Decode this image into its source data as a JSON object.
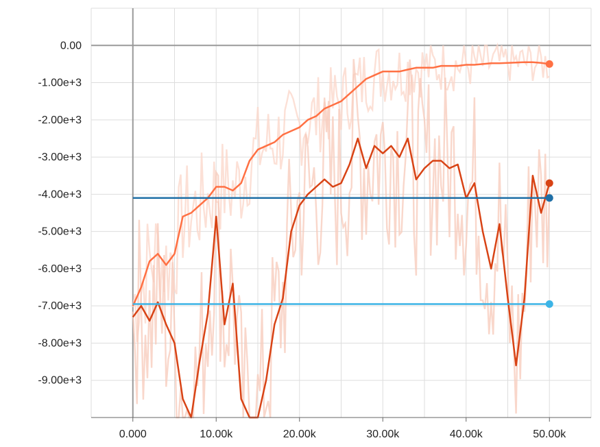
{
  "chart_data": {
    "type": "line",
    "title": "",
    "xlabel": "",
    "ylabel": "",
    "xlim": [
      -5000,
      55000
    ],
    "ylim": [
      -10000,
      1000
    ],
    "x_ticks": [
      0,
      10000,
      20000,
      30000,
      40000,
      50000
    ],
    "x_tick_labels": [
      "0.000",
      "10.00k",
      "20.00k",
      "30.00k",
      "40.00k",
      "50.00k"
    ],
    "y_ticks": [
      0,
      -1000,
      -2000,
      -3000,
      -4000,
      -5000,
      -6000,
      -7000,
      -8000,
      -9000
    ],
    "y_tick_labels": [
      "0.00",
      "-1.00e+3",
      "-2.00e+3",
      "-3.00e+3",
      "-4.00e+3",
      "-5.00e+3",
      "-6.00e+3",
      "-7.00e+3",
      "-8.00e+3",
      "-9.00e+3"
    ],
    "grid": true,
    "legend": "none",
    "series": [
      {
        "color": "#ff7043",
        "raw_color": "#fbd5c8",
        "x": [
          0,
          1000,
          2000,
          3000,
          4000,
          5000,
          6000,
          7000,
          8000,
          9000,
          10000,
          11000,
          12000,
          13000,
          14000,
          15000,
          16000,
          17000,
          18000,
          19000,
          20000,
          21000,
          22000,
          23000,
          24000,
          25000,
          26000,
          27000,
          28000,
          29000,
          30000,
          31000,
          32000,
          33000,
          34000,
          35000,
          36000,
          37000,
          38000,
          39000,
          40000,
          41000,
          42000,
          43000,
          44000,
          45000,
          46000,
          47000,
          48000,
          49000,
          50000
        ],
        "values": [
          -7000,
          -6500,
          -5800,
          -5600,
          -5900,
          -5600,
          -4600,
          -4500,
          -4300,
          -4100,
          -3800,
          -3800,
          -3900,
          -3700,
          -3100,
          -2800,
          -2700,
          -2600,
          -2400,
          -2300,
          -2200,
          -2000,
          -1900,
          -1700,
          -1600,
          -1500,
          -1300,
          -1100,
          -900,
          -800,
          -700,
          -700,
          -700,
          -650,
          -600,
          -600,
          -600,
          -550,
          -550,
          -550,
          -520,
          -520,
          -500,
          -480,
          -480,
          -470,
          -460,
          -450,
          -450,
          -470,
          -500
        ],
        "end_marker": true
      },
      {
        "color": "#d84315",
        "raw_color": "#f7c9b9",
        "x": [
          0,
          1000,
          2000,
          3000,
          4000,
          5000,
          6000,
          7000,
          8000,
          9000,
          10000,
          11000,
          12000,
          13000,
          14000,
          15000,
          16000,
          17000,
          18000,
          19000,
          20000,
          21000,
          22000,
          23000,
          24000,
          25000,
          26000,
          27000,
          28000,
          29000,
          30000,
          31000,
          32000,
          33000,
          34000,
          35000,
          36000,
          37000,
          38000,
          39000,
          40000,
          41000,
          42000,
          43000,
          44000,
          45000,
          46000,
          47000,
          48000,
          49000,
          50000
        ],
        "values": [
          -7300,
          -7000,
          -7400,
          -6900,
          -7500,
          -8000,
          -9500,
          -10200,
          -8500,
          -7200,
          -4600,
          -7500,
          -6400,
          -9500,
          -10300,
          -10000,
          -9000,
          -7500,
          -6800,
          -5000,
          -4300,
          -4000,
          -3800,
          -3600,
          -3800,
          -3700,
          -3200,
          -2500,
          -3300,
          -2700,
          -2900,
          -2700,
          -3000,
          -2500,
          -3600,
          -3300,
          -3100,
          -3100,
          -3300,
          -3200,
          -4100,
          -3700,
          -5000,
          -6000,
          -4800,
          -6800,
          -8600,
          -6800,
          -3500,
          -4500,
          -3700
        ],
        "end_marker": true
      },
      {
        "color": "#1f6fa6",
        "x": [
          0,
          50000
        ],
        "values": [
          -4100,
          -4100
        ],
        "end_marker": true
      },
      {
        "color": "#3cb4e6",
        "x": [
          0,
          50000
        ],
        "values": [
          -6950,
          -6950
        ],
        "end_marker": true
      }
    ]
  }
}
